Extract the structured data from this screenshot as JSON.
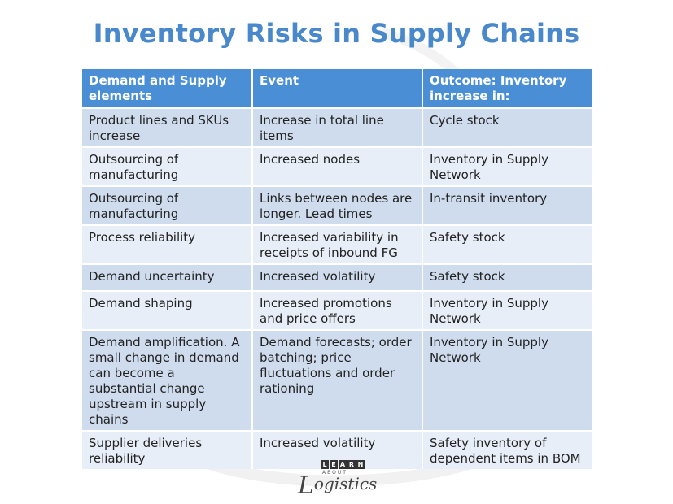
{
  "title": "Inventory Risks in Supply Chains",
  "table": {
    "headers": [
      "Demand and Supply elements",
      "Event",
      "Outcome: Inventory increase in:"
    ],
    "rows": [
      [
        "Product lines and SKUs increase",
        "Increase in total line items",
        "Cycle stock"
      ],
      [
        "Outsourcing of manufacturing",
        "Increased nodes",
        "Inventory in Supply Network"
      ],
      [
        "Outsourcing of manufacturing",
        "Links between nodes are longer. Lead times",
        "In-transit inventory"
      ],
      [
        "Process reliability",
        "Increased variability in receipts of inbound FG",
        "Safety stock"
      ],
      [
        "Demand uncertainty",
        "Increased volatility",
        "Safety stock"
      ],
      [
        "Demand shaping",
        "Increased promotions and price offers",
        "Inventory in Supply Network"
      ],
      [
        "Demand amplification. A small change in demand can become a substantial change upstream in supply chains",
        "Demand forecasts; order batching; price fluctuations and order rationing",
        "Inventory in Supply Network"
      ],
      [
        "Supplier deliveries reliability",
        "Increased volatility",
        "Safety inventory of dependent items in BOM"
      ]
    ]
  },
  "logo": {
    "letters": [
      "L",
      "E",
      "A",
      "R",
      "N"
    ],
    "about": "ABOUT",
    "initial": "L",
    "rest": "ogistics"
  },
  "colors": {
    "title": "#4a88cc",
    "header_bg": "#4a8fd6",
    "row_dark": "#cfdcee",
    "row_light": "#e8eef7"
  }
}
